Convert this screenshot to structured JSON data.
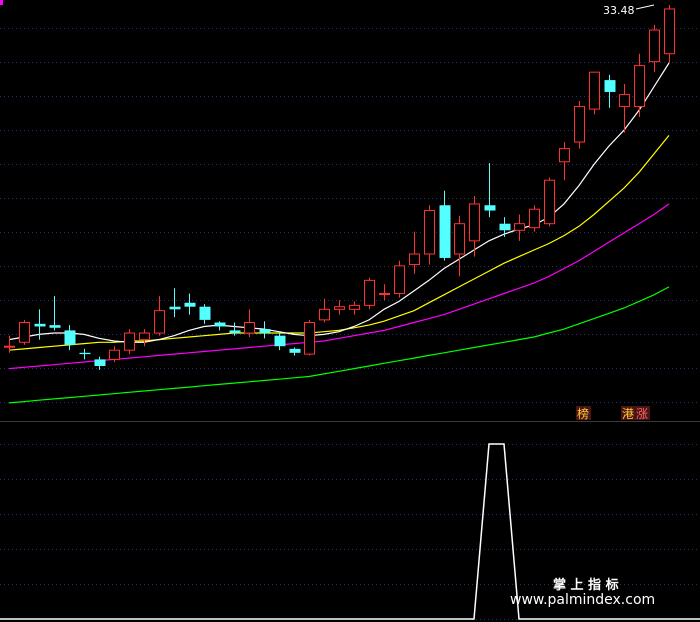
{
  "colors": {
    "background": "#000000",
    "grid": "#2a2e78",
    "separator": "#3a3a3a",
    "candle_up": "#ff3232",
    "candle_down": "#54ffff",
    "ma5": "#ffffff",
    "ma10": "#ffff00",
    "ma20": "#ff00ff",
    "ma60": "#00ff00",
    "indicator": "#ffffff",
    "badge_bg": "#4a1515",
    "badge_text": "#ffcc33",
    "badge_text_alt": "#ff6666",
    "corner_marker": "#ff00ff"
  },
  "price_label": "33.48",
  "badges": {
    "bang": "榜",
    "gang": "港",
    "zhang": "涨"
  },
  "watermark": {
    "title": "掌 上 指 标",
    "url": "www.palmindex.com"
  },
  "chart_data": [
    {
      "type": "candlestick",
      "title": "",
      "price_ylim": [
        3.0,
        34.5
      ],
      "grid": true,
      "candles": [
        [
          8.6,
          8.6,
          9.4,
          8.1,
          "up"
        ],
        [
          8.9,
          10.4,
          10.6,
          8.7,
          "up"
        ],
        [
          10.3,
          10.1,
          11.4,
          9.1,
          "down"
        ],
        [
          10.2,
          10.0,
          12.4,
          9.8,
          "down"
        ],
        [
          9.8,
          8.7,
          10.2,
          8.3,
          "down"
        ],
        [
          8.1,
          8.0,
          8.4,
          7.6,
          "down"
        ],
        [
          7.6,
          7.1,
          7.8,
          6.8,
          "down"
        ],
        [
          7.6,
          8.3,
          8.6,
          7.4,
          "up"
        ],
        [
          8.3,
          9.6,
          9.9,
          8.0,
          "up"
        ],
        [
          9.1,
          9.6,
          9.9,
          8.6,
          "up"
        ],
        [
          9.6,
          11.3,
          12.4,
          9.4,
          "up"
        ],
        [
          11.6,
          11.4,
          13.0,
          10.8,
          "down"
        ],
        [
          11.9,
          11.6,
          12.6,
          11.0,
          "down"
        ],
        [
          11.6,
          10.6,
          11.8,
          10.3,
          "down"
        ],
        [
          10.4,
          10.1,
          10.5,
          9.8,
          "down"
        ],
        [
          9.8,
          9.6,
          10.4,
          9.4,
          "down"
        ],
        [
          9.6,
          10.4,
          11.4,
          9.3,
          "up"
        ],
        [
          9.9,
          9.6,
          10.5,
          9.2,
          "down"
        ],
        [
          9.4,
          8.6,
          9.6,
          8.3,
          "down"
        ],
        [
          8.4,
          8.1,
          8.5,
          7.9,
          "down"
        ],
        [
          8.0,
          10.4,
          10.6,
          7.9,
          "up"
        ],
        [
          10.6,
          11.4,
          12.2,
          10.4,
          "up"
        ],
        [
          11.4,
          11.6,
          12.1,
          11.0,
          "up"
        ],
        [
          11.4,
          11.7,
          12.0,
          11.0,
          "up"
        ],
        [
          11.7,
          13.6,
          13.8,
          11.4,
          "up"
        ],
        [
          12.6,
          12.6,
          13.3,
          12.1,
          "up"
        ],
        [
          12.6,
          14.7,
          15.1,
          12.3,
          "up"
        ],
        [
          14.8,
          15.6,
          17.3,
          14.1,
          "up"
        ],
        [
          15.6,
          18.9,
          19.3,
          14.8,
          "up"
        ],
        [
          19.3,
          15.3,
          20.4,
          15.1,
          "down"
        ],
        [
          15.6,
          17.9,
          18.5,
          13.9,
          "up"
        ],
        [
          16.6,
          19.4,
          20.0,
          15.4,
          "up"
        ],
        [
          19.3,
          18.9,
          22.5,
          18.4,
          "down"
        ],
        [
          17.9,
          17.4,
          18.4,
          16.9,
          "down"
        ],
        [
          17.4,
          17.9,
          18.6,
          16.6,
          "up"
        ],
        [
          17.6,
          19.0,
          19.3,
          17.3,
          "up"
        ],
        [
          17.9,
          21.2,
          21.4,
          17.7,
          "up"
        ],
        [
          22.6,
          23.6,
          24.1,
          21.2,
          "up"
        ],
        [
          24.1,
          26.8,
          27.2,
          23.6,
          "up"
        ],
        [
          26.6,
          29.4,
          29.4,
          26.2,
          "up"
        ],
        [
          28.8,
          27.9,
          29.2,
          26.7,
          "down"
        ],
        [
          26.8,
          27.7,
          28.5,
          24.8,
          "up"
        ],
        [
          26.8,
          29.9,
          30.8,
          26.0,
          "up"
        ],
        [
          30.2,
          32.6,
          33.0,
          29.4,
          "up"
        ],
        [
          30.8,
          34.2,
          34.5,
          30.1,
          "up"
        ]
      ],
      "ma5": [
        9.1,
        9.3,
        9.5,
        9.6,
        9.6,
        9.5,
        9.2,
        9.0,
        8.9,
        8.9,
        9.1,
        9.4,
        9.8,
        10.1,
        10.2,
        10.1,
        10.0,
        9.9,
        9.7,
        9.5,
        9.4,
        9.5,
        9.7,
        10.1,
        10.6,
        11.4,
        12.0,
        12.8,
        13.6,
        14.5,
        15.2,
        15.9,
        16.6,
        17.1,
        17.5,
        17.8,
        18.4,
        19.4,
        20.8,
        22.4,
        23.8,
        25.0,
        26.5,
        28.3,
        30.1
      ],
      "ma10": [
        8.3,
        8.4,
        8.5,
        8.6,
        8.7,
        8.8,
        8.9,
        8.9,
        9.0,
        9.0,
        9.1,
        9.2,
        9.3,
        9.4,
        9.5,
        9.6,
        9.6,
        9.6,
        9.6,
        9.6,
        9.6,
        9.7,
        9.8,
        10.0,
        10.2,
        10.5,
        10.9,
        11.3,
        11.9,
        12.5,
        13.1,
        13.7,
        14.3,
        14.9,
        15.4,
        15.9,
        16.4,
        17.0,
        17.7,
        18.6,
        19.6,
        20.6,
        21.8,
        23.2,
        24.6
      ],
      "ma20": [
        6.9,
        7.0,
        7.1,
        7.2,
        7.3,
        7.4,
        7.5,
        7.6,
        7.7,
        7.8,
        7.9,
        8.0,
        8.1,
        8.2,
        8.3,
        8.4,
        8.5,
        8.6,
        8.7,
        8.8,
        8.9,
        9.0,
        9.2,
        9.4,
        9.6,
        9.8,
        10.1,
        10.4,
        10.7,
        11.0,
        11.4,
        11.8,
        12.2,
        12.6,
        13.0,
        13.4,
        13.9,
        14.5,
        15.1,
        15.8,
        16.5,
        17.2,
        17.9,
        18.6,
        19.4
      ],
      "ma60": [
        4.3,
        4.4,
        4.5,
        4.6,
        4.7,
        4.8,
        4.9,
        5.0,
        5.1,
        5.2,
        5.3,
        5.4,
        5.5,
        5.6,
        5.7,
        5.8,
        5.9,
        6.0,
        6.1,
        6.2,
        6.3,
        6.5,
        6.7,
        6.9,
        7.1,
        7.3,
        7.5,
        7.7,
        7.9,
        8.1,
        8.3,
        8.5,
        8.7,
        8.9,
        9.1,
        9.3,
        9.6,
        9.9,
        10.3,
        10.7,
        11.1,
        11.5,
        12.0,
        12.5,
        13.1
      ]
    },
    {
      "type": "line",
      "title": "",
      "ylim": [
        0,
        1
      ],
      "grid": true,
      "values": [
        0,
        0,
        0,
        0,
        0,
        0,
        0,
        0,
        0,
        0,
        0,
        0,
        0,
        0,
        0,
        0,
        0,
        0,
        0,
        0,
        0,
        0,
        0,
        0,
        0,
        0,
        0,
        0,
        0,
        0,
        0,
        0,
        1,
        1,
        0,
        0,
        0,
        0,
        0,
        0,
        0,
        0,
        0,
        0,
        0
      ]
    }
  ]
}
